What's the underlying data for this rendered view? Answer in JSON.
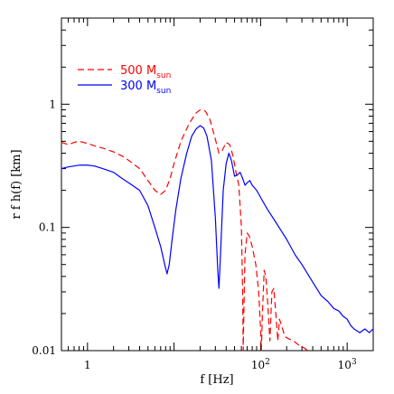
{
  "chart_data": {
    "type": "line",
    "title": "",
    "xlabel": "f  [Hz]",
    "ylabel": "r f  h(f)  [km]",
    "xscale": "log",
    "yscale": "log",
    "xlim": [
      0.5,
      2000
    ],
    "ylim": [
      0.01,
      5
    ],
    "grid": false,
    "legend_position": "top-left",
    "x_tick_labels": [
      {
        "value": 1,
        "label": "1",
        "sup": ""
      },
      {
        "value": 100,
        "label": "10",
        "sup": "2"
      },
      {
        "value": 1000,
        "label": "10",
        "sup": "3"
      }
    ],
    "y_tick_labels": [
      {
        "value": 0.01,
        "label": "0.01"
      },
      {
        "value": 0.1,
        "label": "0.1"
      },
      {
        "value": 1,
        "label": "1"
      }
    ],
    "series": [
      {
        "name": "500 M",
        "name_sub": "sun",
        "color": "#ff0000",
        "dash": "dashed",
        "points": [
          [
            0.5,
            0.49
          ],
          [
            0.6,
            0.47
          ],
          [
            0.7,
            0.49
          ],
          [
            0.8,
            0.5
          ],
          [
            1.0,
            0.48
          ],
          [
            1.2,
            0.46
          ],
          [
            1.5,
            0.44
          ],
          [
            2.0,
            0.41
          ],
          [
            2.5,
            0.38
          ],
          [
            3.0,
            0.35
          ],
          [
            4.0,
            0.3
          ],
          [
            5.0,
            0.24
          ],
          [
            6.0,
            0.2
          ],
          [
            7.0,
            0.185
          ],
          [
            8.0,
            0.2
          ],
          [
            9.0,
            0.25
          ],
          [
            10.0,
            0.33
          ],
          [
            12.0,
            0.5
          ],
          [
            15.0,
            0.7
          ],
          [
            18.0,
            0.85
          ],
          [
            20.0,
            0.9
          ],
          [
            23.0,
            0.88
          ],
          [
            26.0,
            0.75
          ],
          [
            30.0,
            0.52
          ],
          [
            33.0,
            0.4
          ],
          [
            36.0,
            0.42
          ],
          [
            40.0,
            0.49
          ],
          [
            44.0,
            0.47
          ],
          [
            48.0,
            0.38
          ],
          [
            52.0,
            0.28
          ],
          [
            56.0,
            0.22
          ],
          [
            60.0,
            0.1
          ],
          [
            62.0,
            0.03
          ],
          [
            63.0,
            0.01
          ],
          [
            64.0,
            0.02
          ],
          [
            66.0,
            0.06
          ],
          [
            70.0,
            0.09
          ],
          [
            74.0,
            0.085
          ],
          [
            80.0,
            0.07
          ],
          [
            88.0,
            0.05
          ],
          [
            95.0,
            0.03
          ],
          [
            100.0,
            0.015
          ],
          [
            102.0,
            0.01
          ],
          [
            105.0,
            0.02
          ],
          [
            110.0,
            0.045
          ],
          [
            115.0,
            0.04
          ],
          [
            122.0,
            0.022
          ],
          [
            128.0,
            0.012
          ],
          [
            135.0,
            0.03
          ],
          [
            142.0,
            0.032
          ],
          [
            150.0,
            0.02
          ],
          [
            158.0,
            0.012
          ],
          [
            165.0,
            0.018
          ],
          [
            175.0,
            0.016
          ],
          [
            190.0,
            0.013
          ],
          [
            210.0,
            0.0125
          ],
          [
            240.0,
            0.012
          ],
          [
            280.0,
            0.011
          ],
          [
            320.0,
            0.0105
          ],
          [
            350.0,
            0.01
          ]
        ]
      },
      {
        "name": "300 M",
        "name_sub": "sun",
        "color": "#0000ff",
        "dash": "solid",
        "points": [
          [
            0.5,
            0.3
          ],
          [
            0.6,
            0.31
          ],
          [
            0.7,
            0.315
          ],
          [
            0.8,
            0.32
          ],
          [
            1.0,
            0.32
          ],
          [
            1.2,
            0.315
          ],
          [
            1.5,
            0.3
          ],
          [
            2.0,
            0.28
          ],
          [
            2.5,
            0.25
          ],
          [
            3.0,
            0.23
          ],
          [
            4.0,
            0.2
          ],
          [
            5.0,
            0.15
          ],
          [
            6.0,
            0.1
          ],
          [
            7.0,
            0.07
          ],
          [
            7.8,
            0.05
          ],
          [
            8.3,
            0.042
          ],
          [
            8.8,
            0.05
          ],
          [
            9.5,
            0.08
          ],
          [
            10.5,
            0.14
          ],
          [
            12.0,
            0.25
          ],
          [
            14.0,
            0.4
          ],
          [
            16.0,
            0.55
          ],
          [
            18.0,
            0.63
          ],
          [
            20.0,
            0.67
          ],
          [
            22.0,
            0.64
          ],
          [
            24.0,
            0.55
          ],
          [
            27.0,
            0.35
          ],
          [
            30.0,
            0.12
          ],
          [
            32.0,
            0.045
          ],
          [
            33.0,
            0.032
          ],
          [
            34.0,
            0.05
          ],
          [
            37.0,
            0.2
          ],
          [
            40.0,
            0.33
          ],
          [
            43.0,
            0.4
          ],
          [
            46.0,
            0.35
          ],
          [
            50.0,
            0.26
          ],
          [
            55.0,
            0.27
          ],
          [
            58.0,
            0.28
          ],
          [
            62.0,
            0.25
          ],
          [
            66.0,
            0.22
          ],
          [
            70.0,
            0.23
          ],
          [
            75.0,
            0.24
          ],
          [
            80.0,
            0.22
          ],
          [
            90.0,
            0.2
          ],
          [
            100.0,
            0.175
          ],
          [
            120.0,
            0.14
          ],
          [
            150.0,
            0.11
          ],
          [
            200.0,
            0.08
          ],
          [
            250.0,
            0.06
          ],
          [
            300.0,
            0.05
          ],
          [
            400.0,
            0.036
          ],
          [
            500.0,
            0.028
          ],
          [
            600.0,
            0.025
          ],
          [
            700.0,
            0.022
          ],
          [
            800.0,
            0.021
          ],
          [
            900.0,
            0.019
          ],
          [
            1000.0,
            0.018
          ],
          [
            1100.0,
            0.016
          ],
          [
            1200.0,
            0.015
          ],
          [
            1400.0,
            0.014
          ],
          [
            1600.0,
            0.015
          ],
          [
            1800.0,
            0.014
          ],
          [
            2000.0,
            0.015
          ]
        ]
      }
    ]
  }
}
